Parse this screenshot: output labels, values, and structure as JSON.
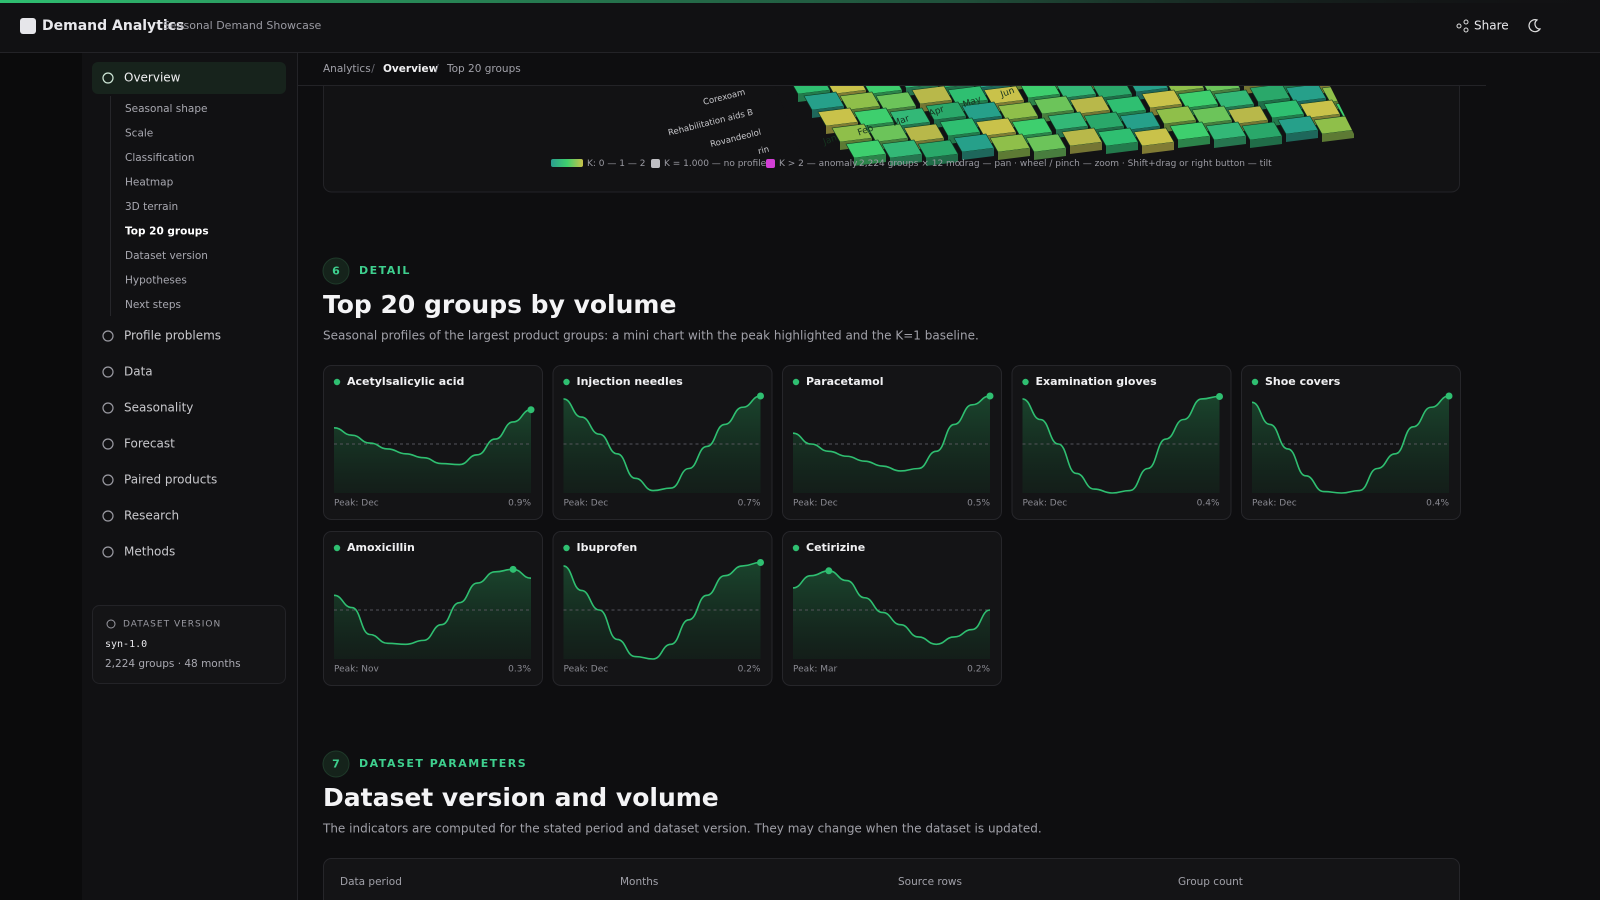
{
  "header": {
    "title": "Demand Analytics",
    "subtitle": "Seasonal Demand Showcase",
    "share": "Share"
  },
  "breadcrumb": [
    "Analytics",
    "Overview",
    "Top 20 groups"
  ],
  "sidebar": {
    "nav": [
      {
        "label": "Overview",
        "children": [
          "Seasonal shape",
          "Scale",
          "Classification",
          "Heatmap",
          "3D terrain",
          "Top 20 groups",
          "Dataset version",
          "Hypotheses",
          "Next steps"
        ]
      },
      {
        "label": "Profile problems"
      },
      {
        "label": "Data"
      },
      {
        "label": "Seasonality"
      },
      {
        "label": "Forecast"
      },
      {
        "label": "Paired products"
      },
      {
        "label": "Research"
      },
      {
        "label": "Methods"
      }
    ],
    "dataset": {
      "title": "DATASET VERSION",
      "version": "syn-1.0",
      "meta": "2,224 groups · 48 months"
    }
  },
  "terrain": {
    "row_labels": [
      "Corexoam",
      "Rehabilitation aids B",
      "Rovandeolol",
      "rin"
    ],
    "months": [
      "Jan",
      "Feb",
      "Mar",
      "Apr",
      "May",
      "Jun"
    ],
    "legend": [
      "K: 0 — 1 — 2",
      "K = 1.000 — no profile",
      "K > 2 — anomaly",
      "2,224 groups × 12 mo",
      "drag — pan · wheel / pinch — zoom · Shift+drag or right button — tilt"
    ]
  },
  "sections": [
    {
      "number": "6",
      "kicker": "DETAIL",
      "title": "Top 20 groups by volume",
      "description": "Seasonal profiles of the largest product groups: a mini chart with the peak highlighted and the K=1 baseline."
    },
    {
      "number": "7",
      "kicker": "DATASET PARAMETERS",
      "title": "Dataset version and volume",
      "description": "The indicators are computed for the stated period and dataset version. They may change when the dataset is updated."
    }
  ],
  "mini_chart": {
    "ylim": [
      0,
      2
    ],
    "baseline": 1
  },
  "cards": [
    {
      "name": "Acetylsalicylic acid",
      "peak": "Peak: Dec",
      "share": "0.9%",
      "values": [
        1.33,
        1.18,
        1.02,
        0.9,
        0.8,
        0.72,
        0.6,
        0.58,
        0.78,
        1.1,
        1.45,
        1.7
      ]
    },
    {
      "name": "Injection needles",
      "peak": "Peak: Dec",
      "share": "0.7%",
      "values": [
        1.92,
        1.55,
        1.2,
        0.8,
        0.3,
        0.05,
        0.1,
        0.5,
        0.95,
        1.4,
        1.75,
        1.98
      ]
    },
    {
      "name": "Paracetamol",
      "peak": "Peak: Dec",
      "share": "0.5%",
      "values": [
        1.22,
        1.0,
        0.85,
        0.75,
        0.65,
        0.55,
        0.45,
        0.5,
        0.85,
        1.4,
        1.8,
        1.98
      ]
    },
    {
      "name": "Examination gloves",
      "peak": "Peak: Dec",
      "share": "0.4%",
      "values": [
        1.92,
        1.5,
        1.0,
        0.4,
        0.08,
        0.0,
        0.05,
        0.5,
        1.1,
        1.5,
        1.92,
        1.97
      ]
    },
    {
      "name": "Shoe covers",
      "peak": "Peak: Dec",
      "share": "0.4%",
      "values": [
        1.85,
        1.4,
        0.9,
        0.35,
        0.03,
        0.0,
        0.05,
        0.5,
        0.8,
        1.35,
        1.75,
        1.98
      ]
    },
    {
      "name": "Amoxicillin",
      "peak": "Peak: Nov",
      "share": "0.3%",
      "values": [
        1.3,
        1.05,
        0.5,
        0.32,
        0.3,
        0.38,
        0.7,
        1.15,
        1.55,
        1.78,
        1.83,
        1.65
      ]
    },
    {
      "name": "Ibuprofen",
      "peak": "Peak: Dec",
      "share": "0.2%",
      "values": [
        1.9,
        1.4,
        1.0,
        0.4,
        0.05,
        0.0,
        0.3,
        0.8,
        1.3,
        1.7,
        1.9,
        1.97
      ]
    },
    {
      "name": "Cetirizine",
      "peak": "Peak: Mar",
      "share": "0.2%",
      "values": [
        1.45,
        1.7,
        1.8,
        1.6,
        1.25,
        0.95,
        0.7,
        0.45,
        0.3,
        0.45,
        0.6,
        1.0
      ]
    }
  ],
  "table": {
    "headers": [
      "Data period",
      "Months",
      "Source rows",
      "Group count"
    ]
  }
}
